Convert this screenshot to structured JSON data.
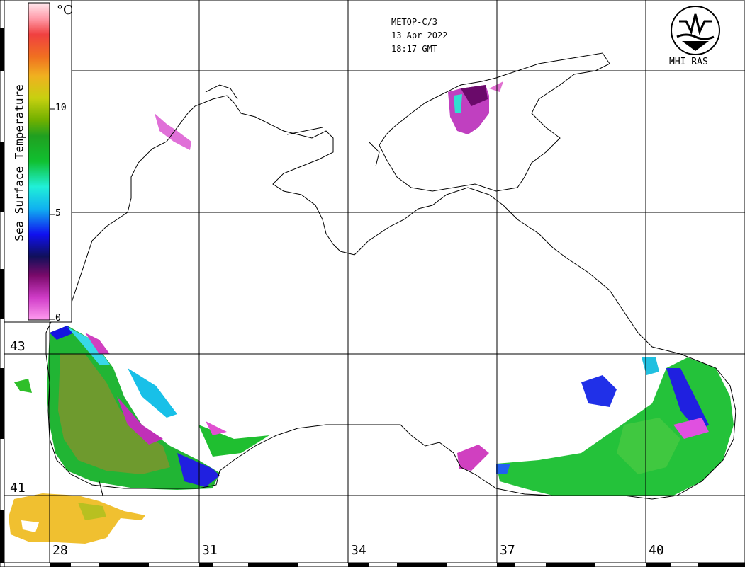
{
  "header": {
    "satellite": "METOP-C/3",
    "date": "13 Apr 2022",
    "time": "18:17 GMT"
  },
  "logo": {
    "text": "MHI RAS"
  },
  "legend": {
    "title": "Sea Surface Temperature",
    "unit": "°C",
    "ticks": [
      "10",
      "5",
      "0"
    ],
    "range": [
      0,
      15
    ],
    "colors": [
      "#ff9cef",
      "#d03cc8",
      "#7a0a6a",
      "#10105a",
      "#1010f0",
      "#10b0f0",
      "#20f0d8",
      "#10c030",
      "#20a020",
      "#70b000",
      "#c8d010",
      "#f0b020",
      "#f07020",
      "#f04040",
      "#ff9aa8",
      "#ffe8ee"
    ]
  },
  "grid": {
    "lat_labels": [
      "43",
      "41"
    ],
    "lon_labels": [
      "28",
      "31",
      "34",
      "37",
      "40"
    ]
  }
}
